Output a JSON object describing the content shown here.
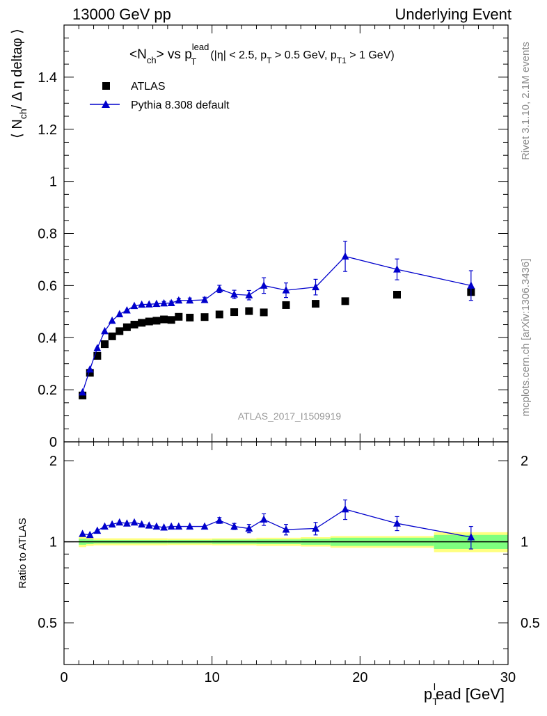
{
  "header": {
    "left": "13000 GeV pp",
    "right": "Underlying Event"
  },
  "side": {
    "rivet": "Rivet 3.1.10,  2.1M events",
    "mcplots": "mcplots.cern.ch [arXiv:1306.3436]"
  },
  "title": {
    "main": "<N",
    "main_sub": "ch",
    "main_mid": "> vs p",
    "main_sup": "lead",
    "main_sub2": "T",
    "cuts_a": "(|η| < 2.5, p",
    "cuts_a_sub": "T",
    "cuts_b": " > 0.5 GeV, p",
    "cuts_b_sub": "T1",
    "cuts_c": " > 1 GeV)"
  },
  "ylabel": {
    "a": "⟨ N",
    "a_sub": "ch",
    "b": "/ Δ η deltaφ ⟩"
  },
  "ratio_ylabel": "Ratio to ATLAS",
  "xlabel": {
    "a": "p",
    "a_sub": "T",
    "a_sup": "l",
    "b": "ead [GeV]"
  },
  "watermark": "ATLAS_2017_I1509919",
  "legend": {
    "atlas": "ATLAS",
    "pythia": "Pythia 8.308 default"
  },
  "colors": {
    "data": "#000000",
    "mc": "#0000cc",
    "band_inner": "#7fff7f",
    "band_outer": "#ffff80"
  },
  "chart_data": {
    "type": "scatter",
    "xlim": [
      0,
      30
    ],
    "ylim": [
      0,
      1.6
    ],
    "ratio_ylim": [
      0.35,
      2.35
    ],
    "ratio_scale": "log",
    "x_ticks": [
      "0",
      "10",
      "20",
      "30"
    ],
    "y_ticks": [
      "0",
      "0.2",
      "0.4",
      "0.6",
      "0.8",
      "1",
      "1.2",
      "1.4"
    ],
    "ratio_y_ticks": [
      "0.5",
      "1",
      "2"
    ],
    "series": [
      {
        "name": "ATLAS",
        "x": [
          1.25,
          1.75,
          2.25,
          2.75,
          3.25,
          3.75,
          4.25,
          4.75,
          5.25,
          5.75,
          6.25,
          6.75,
          7.25,
          7.75,
          8.5,
          9.5,
          10.5,
          11.5,
          12.5,
          13.5,
          15,
          17,
          19,
          22.5,
          27.5
        ],
        "y": [
          0.178,
          0.265,
          0.33,
          0.375,
          0.405,
          0.425,
          0.44,
          0.45,
          0.457,
          0.462,
          0.465,
          0.47,
          0.468,
          0.48,
          0.477,
          0.479,
          0.489,
          0.498,
          0.502,
          0.497,
          0.525,
          0.53,
          0.54,
          0.565,
          0.575
        ]
      },
      {
        "name": "Pythia 8.308 default",
        "x": [
          1.25,
          1.75,
          2.25,
          2.75,
          3.25,
          3.75,
          4.25,
          4.75,
          5.25,
          5.75,
          6.25,
          6.75,
          7.25,
          7.75,
          8.5,
          9.5,
          10.5,
          11.5,
          12.5,
          13.5,
          15,
          17,
          19,
          22.5,
          27.5
        ],
        "y": [
          0.19,
          0.278,
          0.36,
          0.425,
          0.465,
          0.49,
          0.505,
          0.522,
          0.527,
          0.528,
          0.53,
          0.532,
          0.533,
          0.543,
          0.543,
          0.545,
          0.587,
          0.566,
          0.563,
          0.6,
          0.582,
          0.594,
          0.712,
          0.662,
          0.6
        ],
        "yerr": [
          0.003,
          0.004,
          0.004,
          0.005,
          0.005,
          0.005,
          0.005,
          0.006,
          0.006,
          0.006,
          0.006,
          0.007,
          0.007,
          0.008,
          0.009,
          0.01,
          0.014,
          0.016,
          0.018,
          0.03,
          0.028,
          0.03,
          0.058,
          0.04,
          0.057
        ]
      }
    ],
    "ratio": {
      "x": [
        1.25,
        1.75,
        2.25,
        2.75,
        3.25,
        3.75,
        4.25,
        4.75,
        5.25,
        5.75,
        6.25,
        6.75,
        7.25,
        7.75,
        8.5,
        9.5,
        10.5,
        11.5,
        12.5,
        13.5,
        15,
        17,
        19,
        22.5,
        27.5
      ],
      "y": [
        1.07,
        1.06,
        1.1,
        1.14,
        1.16,
        1.18,
        1.17,
        1.18,
        1.16,
        1.15,
        1.14,
        1.13,
        1.14,
        1.14,
        1.14,
        1.14,
        1.2,
        1.14,
        1.12,
        1.21,
        1.11,
        1.12,
        1.32,
        1.17,
        1.04
      ],
      "yerr": [
        0.02,
        0.02,
        0.02,
        0.02,
        0.02,
        0.02,
        0.02,
        0.02,
        0.02,
        0.02,
        0.02,
        0.02,
        0.02,
        0.02,
        0.02,
        0.02,
        0.03,
        0.03,
        0.04,
        0.06,
        0.05,
        0.06,
        0.11,
        0.07,
        0.1
      ]
    },
    "bands": [
      {
        "x0": 1,
        "x1": 1.5,
        "inner": 0.025,
        "outer": 0.045
      },
      {
        "x0": 1.5,
        "x1": 2,
        "inner": 0.02,
        "outer": 0.035
      },
      {
        "x0": 2,
        "x1": 7,
        "inner": 0.015,
        "outer": 0.03
      },
      {
        "x0": 7,
        "x1": 10,
        "inner": 0.015,
        "outer": 0.028
      },
      {
        "x0": 10,
        "x1": 13,
        "inner": 0.018,
        "outer": 0.03
      },
      {
        "x0": 13,
        "x1": 16,
        "inner": 0.02,
        "outer": 0.035
      },
      {
        "x0": 16,
        "x1": 18,
        "inner": 0.025,
        "outer": 0.04
      },
      {
        "x0": 18,
        "x1": 25,
        "inner": 0.035,
        "outer": 0.05
      },
      {
        "x0": 25,
        "x1": 30,
        "inner": 0.06,
        "outer": 0.085
      }
    ]
  }
}
